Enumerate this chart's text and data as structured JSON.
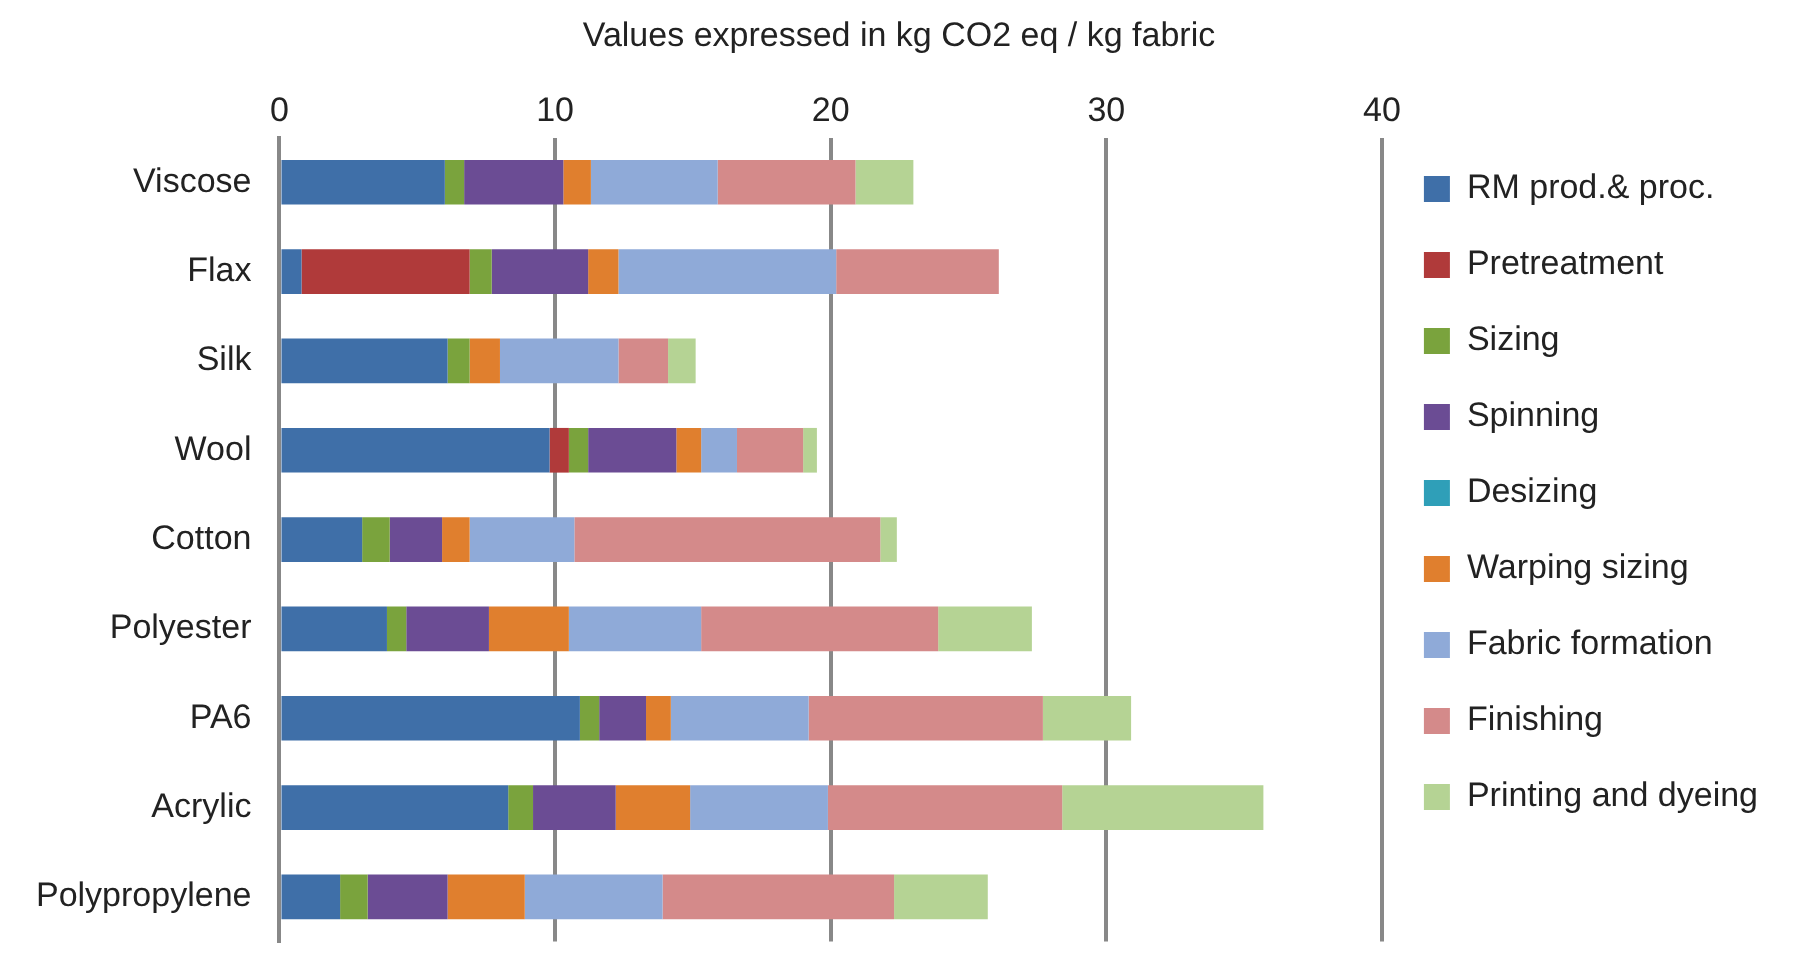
{
  "chart_data": {
    "type": "bar",
    "title": "Values expressed in kg CO2 eq / kg fabric",
    "orientation": "horizontal",
    "stacked": true,
    "grid": "x",
    "legend": "right",
    "xlim": [
      0,
      40
    ],
    "xticks": [
      0,
      10,
      20,
      30,
      40
    ],
    "categories": [
      "Viscose",
      "Flax",
      "Silk",
      "Wool",
      "Cotton",
      "Polyester",
      "PA6",
      "Acrylic",
      "Polypropylene"
    ],
    "series": [
      {
        "name": "RM prod.& proc.",
        "color": "#3f6fa8",
        "values": [
          6.0,
          0.8,
          6.1,
          9.8,
          3.0,
          3.9,
          10.9,
          8.3,
          2.2
        ]
      },
      {
        "name": "Pretreatment",
        "color": "#b03a3a",
        "values": [
          0,
          6.1,
          0,
          0.7,
          0,
          0,
          0,
          0,
          0
        ]
      },
      {
        "name": "Sizing",
        "color": "#7aa33d",
        "values": [
          0.7,
          0.8,
          0.8,
          0.7,
          1.0,
          0.7,
          0.7,
          0.9,
          1.0
        ]
      },
      {
        "name": "Spinning",
        "color": "#6b4c94",
        "values": [
          3.6,
          3.5,
          0,
          3.2,
          1.9,
          3.0,
          1.7,
          3.0,
          2.9
        ]
      },
      {
        "name": "Desizing",
        "color": "#2f9fb8",
        "values": [
          0,
          0,
          0,
          0,
          0,
          0,
          0,
          0,
          0
        ]
      },
      {
        "name": "Warping sizing",
        "color": "#e07f2e",
        "values": [
          1.0,
          1.1,
          1.1,
          0.9,
          1.0,
          2.9,
          0.9,
          2.7,
          2.8
        ]
      },
      {
        "name": "Fabric formation",
        "color": "#8faad8",
        "values": [
          4.6,
          7.9,
          4.3,
          1.3,
          3.8,
          4.8,
          5.0,
          5.0,
          5.0
        ]
      },
      {
        "name": "Finishing",
        "color": "#d48a8a",
        "values": [
          5.0,
          5.9,
          1.8,
          2.4,
          11.1,
          8.6,
          8.5,
          8.5,
          8.4
        ]
      },
      {
        "name": "Printing and dyeing",
        "color": "#b5d394",
        "values": [
          2.1,
          0,
          1.0,
          0.5,
          0.6,
          3.4,
          3.2,
          7.3,
          3.4
        ]
      }
    ]
  }
}
